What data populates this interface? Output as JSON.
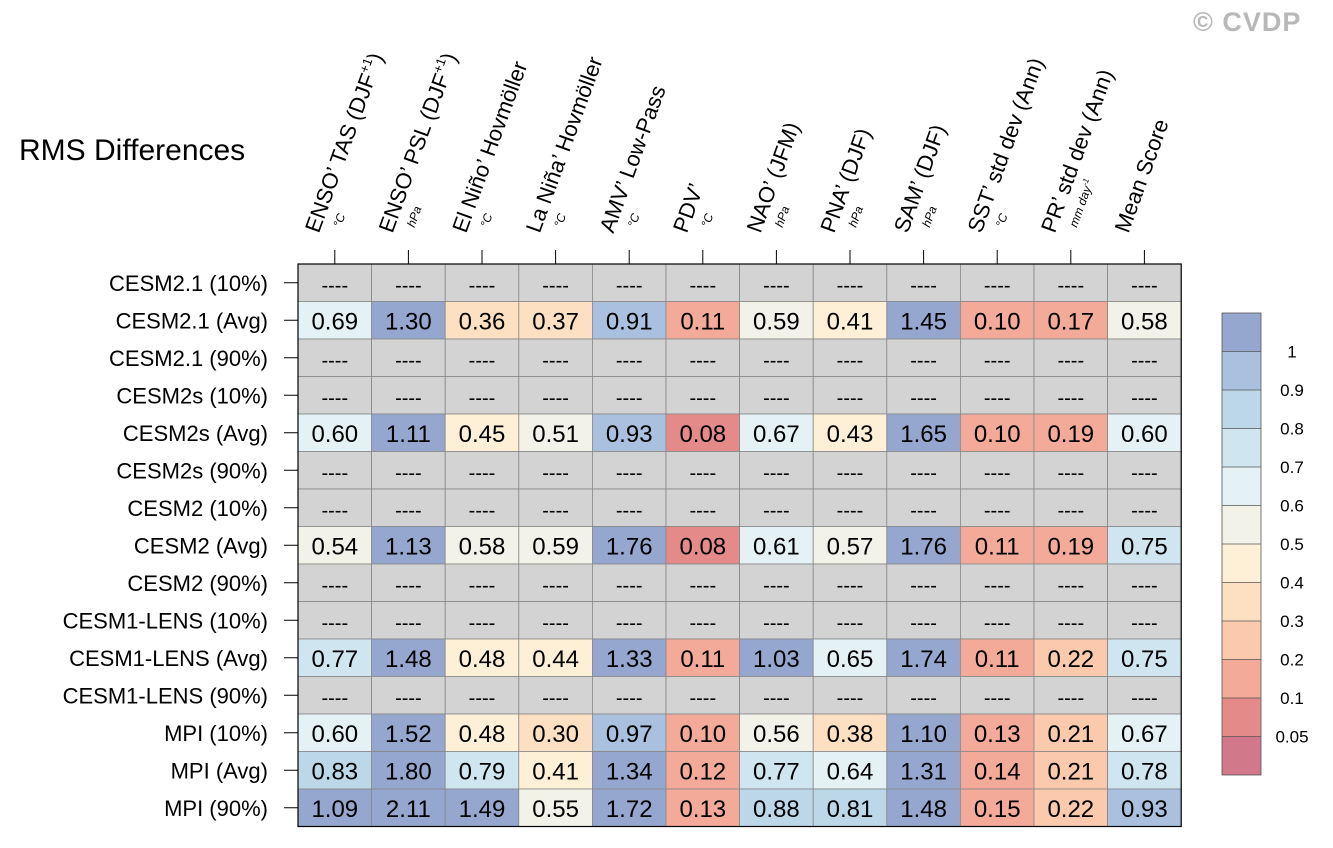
{
  "copyright": "© CVDP",
  "title": "RMS Differences",
  "chart_data": {
    "type": "heatmap",
    "title": "RMS Differences",
    "columns": [
      {
        "label": "ENSO’ TAS (DJF",
        "sup": "+1",
        "close": ")",
        "unit": "°C"
      },
      {
        "label": "ENSO’ PSL (DJF",
        "sup": "+1",
        "close": ")",
        "unit": "hPa"
      },
      {
        "label": "El Niño’ Hovmöller",
        "sup": "",
        "close": "",
        "unit": "°C"
      },
      {
        "label": "La Niña’ Hovmöller",
        "sup": "",
        "close": "",
        "unit": "°C"
      },
      {
        "label": "AMV’ Low-Pass",
        "sup": "",
        "close": "",
        "unit": "°C"
      },
      {
        "label": "PDV’",
        "sup": "",
        "close": "",
        "unit": "°C"
      },
      {
        "label": "NAO’ (JFM)",
        "sup": "",
        "close": "",
        "unit": "hPa"
      },
      {
        "label": "PNA’ (DJF)",
        "sup": "",
        "close": "",
        "unit": "hPa"
      },
      {
        "label": "SAM’ (DJF)",
        "sup": "",
        "close": "",
        "unit": "hPa"
      },
      {
        "label": "SST’ std dev (Ann)",
        "sup": "",
        "close": "",
        "unit": "°C"
      },
      {
        "label": "PR’ std dev (Ann)",
        "sup": "",
        "close": "",
        "unit": "mm day",
        "unit_sup": "-1"
      },
      {
        "label": "Mean Score",
        "sup": "",
        "close": "",
        "unit": ""
      }
    ],
    "rows": [
      {
        "label": "CESM2.1 (10%)",
        "values": null
      },
      {
        "label": "CESM2.1 (Avg)",
        "values": [
          "0.69",
          "1.30",
          "0.36",
          "0.37",
          "0.91",
          "0.11",
          "0.59",
          "0.41",
          "1.45",
          "0.10",
          "0.17",
          "0.58"
        ]
      },
      {
        "label": "CESM2.1 (90%)",
        "values": null
      },
      {
        "label": "CESM2s (10%)",
        "values": null
      },
      {
        "label": "CESM2s (Avg)",
        "values": [
          "0.60",
          "1.11",
          "0.45",
          "0.51",
          "0.93",
          "0.08",
          "0.67",
          "0.43",
          "1.65",
          "0.10",
          "0.19",
          "0.60"
        ]
      },
      {
        "label": "CESM2s (90%)",
        "values": null
      },
      {
        "label": "CESM2 (10%)",
        "values": null
      },
      {
        "label": "CESM2 (Avg)",
        "values": [
          "0.54",
          "1.13",
          "0.58",
          "0.59",
          "1.76",
          "0.08",
          "0.61",
          "0.57",
          "1.76",
          "0.11",
          "0.19",
          "0.75"
        ]
      },
      {
        "label": "CESM2 (90%)",
        "values": null
      },
      {
        "label": "CESM1-LENS (10%)",
        "values": null
      },
      {
        "label": "CESM1-LENS (Avg)",
        "values": [
          "0.77",
          "1.48",
          "0.48",
          "0.44",
          "1.33",
          "0.11",
          "1.03",
          "0.65",
          "1.74",
          "0.11",
          "0.22",
          "0.75"
        ]
      },
      {
        "label": "CESM1-LENS (90%)",
        "values": null
      },
      {
        "label": "MPI (10%)",
        "values": [
          "0.60",
          "1.52",
          "0.48",
          "0.30",
          "0.97",
          "0.10",
          "0.56",
          "0.38",
          "1.10",
          "0.13",
          "0.21",
          "0.67"
        ]
      },
      {
        "label": "MPI (Avg)",
        "values": [
          "0.83",
          "1.80",
          "0.79",
          "0.41",
          "1.34",
          "0.12",
          "0.77",
          "0.64",
          "1.31",
          "0.14",
          "0.21",
          "0.78"
        ]
      },
      {
        "label": "MPI (90%)",
        "values": [
          "1.09",
          "2.11",
          "1.49",
          "0.55",
          "1.72",
          "0.13",
          "0.88",
          "0.81",
          "1.48",
          "0.15",
          "0.22",
          "0.93"
        ]
      }
    ],
    "missing_text": "----",
    "missing_color": "#d3d3d3",
    "legend": {
      "ticks": [
        "1",
        "0.9",
        "0.8",
        "0.7",
        "0.6",
        "0.5",
        "0.4",
        "0.3",
        "0.2",
        "0.1",
        "0.05"
      ],
      "colors": [
        "#95a6cf",
        "#a9c1de",
        "#bcd8e8",
        "#cfe5ef",
        "#e4f1f5",
        "#f2f2e9",
        "#fdf0d6",
        "#fde0c1",
        "#fbc9ac",
        "#f3aa98",
        "#e48b8a",
        "#d1788a"
      ]
    }
  }
}
